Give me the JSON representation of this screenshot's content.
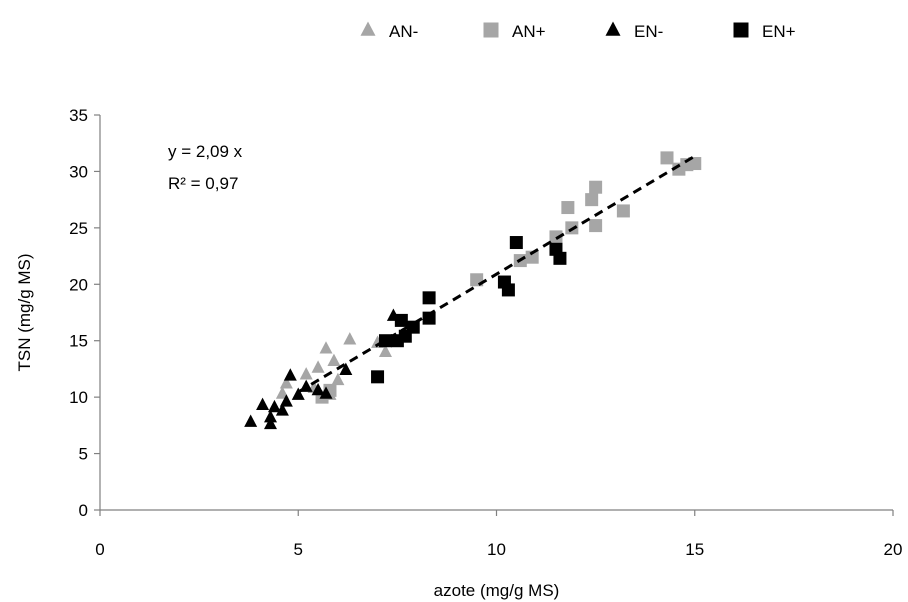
{
  "chart_data": {
    "type": "scatter",
    "title": "",
    "xlabel": "azote (mg/g MS)",
    "ylabel": "TSN (mg/g MS)",
    "xlim": [
      0,
      20
    ],
    "ylim": [
      0,
      35
    ],
    "x_ticks": [
      "0",
      "5",
      "10",
      "15",
      "20"
    ],
    "y_ticks": [
      "0",
      "5",
      "10",
      "15",
      "20",
      "25",
      "30",
      "35"
    ],
    "grid": false,
    "legend_position": "top",
    "annotations": {
      "equation": "y = 2,09 x",
      "r2": "R² = 0,97"
    },
    "trendline": {
      "style": "dashed",
      "color": "#000000",
      "slope": 2.09,
      "x_range": [
        5.0,
        15.0
      ]
    },
    "series": [
      {
        "name": "AN-",
        "marker": "triangle",
        "color": "#a6a6a6",
        "points": [
          [
            4.7,
            11.2
          ],
          [
            5.2,
            12.0
          ],
          [
            5.5,
            12.6
          ],
          [
            5.7,
            14.3
          ],
          [
            5.9,
            13.2
          ],
          [
            6.3,
            15.1
          ],
          [
            6.0,
            11.5
          ],
          [
            5.8,
            10.2
          ],
          [
            7.2,
            14.0
          ],
          [
            4.6,
            10.3
          ],
          [
            5.4,
            10.8
          ],
          [
            7.0,
            14.8
          ]
        ]
      },
      {
        "name": "AN+",
        "marker": "square",
        "color": "#a6a6a6",
        "points": [
          [
            5.6,
            10.0
          ],
          [
            5.8,
            10.6
          ],
          [
            9.5,
            20.4
          ],
          [
            10.6,
            22.1
          ],
          [
            10.9,
            22.4
          ],
          [
            11.5,
            24.2
          ],
          [
            11.8,
            26.8
          ],
          [
            11.9,
            25.0
          ],
          [
            12.4,
            27.5
          ],
          [
            12.5,
            28.6
          ],
          [
            12.5,
            25.2
          ],
          [
            13.2,
            26.5
          ],
          [
            14.3,
            31.2
          ],
          [
            14.6,
            30.2
          ],
          [
            14.8,
            30.6
          ],
          [
            15.0,
            30.7
          ]
        ]
      },
      {
        "name": "EN-",
        "marker": "triangle",
        "color": "#000000",
        "points": [
          [
            3.8,
            7.8
          ],
          [
            4.1,
            9.3
          ],
          [
            4.3,
            7.6
          ],
          [
            4.3,
            8.2
          ],
          [
            4.4,
            9.1
          ],
          [
            4.6,
            8.8
          ],
          [
            4.7,
            9.6
          ],
          [
            4.8,
            11.9
          ],
          [
            5.0,
            10.2
          ],
          [
            5.2,
            10.9
          ],
          [
            5.5,
            10.6
          ],
          [
            5.7,
            10.3
          ],
          [
            6.2,
            12.4
          ],
          [
            7.4,
            17.2
          ]
        ]
      },
      {
        "name": "EN+",
        "marker": "square",
        "color": "#000000",
        "points": [
          [
            7.0,
            11.8
          ],
          [
            7.2,
            15.0
          ],
          [
            7.5,
            15.0
          ],
          [
            7.6,
            16.8
          ],
          [
            7.7,
            15.4
          ],
          [
            7.9,
            16.2
          ],
          [
            8.3,
            17.0
          ],
          [
            8.3,
            18.8
          ],
          [
            10.2,
            20.2
          ],
          [
            10.3,
            19.5
          ],
          [
            10.5,
            23.7
          ],
          [
            11.5,
            23.1
          ],
          [
            11.6,
            22.3
          ]
        ]
      }
    ]
  }
}
